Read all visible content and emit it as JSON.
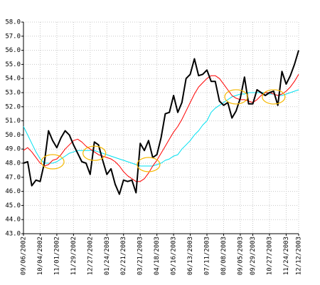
{
  "chart_data": {
    "type": "line",
    "categories": [
      "09/06/2002",
      null,
      null,
      null,
      "10/04/2002",
      null,
      null,
      null,
      "11/01/2002",
      null,
      null,
      null,
      "11/29/2002",
      null,
      null,
      null,
      "12/27/2002",
      null,
      null,
      null,
      "01/24/2003",
      null,
      null,
      null,
      "02/21/2003",
      null,
      null,
      null,
      "03/21/2003",
      null,
      null,
      null,
      "04/18/2003",
      null,
      null,
      null,
      "05/16/2003",
      null,
      null,
      null,
      "06/13/2003",
      null,
      null,
      null,
      "07/11/2003",
      null,
      null,
      null,
      "08/08/2003",
      null,
      null,
      null,
      "09/05/2003",
      null,
      null,
      "09/29/2003",
      null,
      null,
      null,
      "10/27/2003",
      null,
      null,
      null,
      "11/24/2003",
      null,
      null,
      "12/12/2003"
    ],
    "series": [
      {
        "color": "#000000",
        "values": [
          48.0,
          48.1,
          46.4,
          46.8,
          46.7,
          48.0,
          50.3,
          49.6,
          49.1,
          49.8,
          50.3,
          50.0,
          49.3,
          48.7,
          48.1,
          48.0,
          47.2,
          49.5,
          49.3,
          48.2,
          47.2,
          47.6,
          46.5,
          45.8,
          46.8,
          46.7,
          46.8,
          45.9,
          49.4,
          48.9,
          49.6,
          48.4,
          48.6,
          49.8,
          51.5,
          51.6,
          52.8,
          51.6,
          52.3,
          54.0,
          54.3,
          55.4,
          54.2,
          54.3,
          54.6,
          53.8,
          53.8,
          52.4,
          52.1,
          52.3,
          51.2,
          51.7,
          52.6,
          54.1,
          52.2,
          52.2,
          53.2,
          53.0,
          52.8,
          53.0,
          53.1,
          52.1,
          54.5,
          53.6,
          54.2,
          55.0,
          56.0
        ]
      },
      {
        "color": "#ff0000",
        "values": [
          48.9,
          49.1,
          48.8,
          48.4,
          48.0,
          47.8,
          47.9,
          48.2,
          48.3,
          48.6,
          49.0,
          49.3,
          49.6,
          49.7,
          49.5,
          49.2,
          49.0,
          48.8,
          48.6,
          48.5,
          48.4,
          48.3,
          48.1,
          47.8,
          47.4,
          47.1,
          46.9,
          46.7,
          46.7,
          46.9,
          47.3,
          47.8,
          48.2,
          48.7,
          49.2,
          49.7,
          50.2,
          50.6,
          51.1,
          51.7,
          52.3,
          52.9,
          53.4,
          53.7,
          54.0,
          54.2,
          54.2,
          54.0,
          53.6,
          53.2,
          52.8,
          52.6,
          52.5,
          52.5,
          52.4,
          52.3,
          52.5,
          52.8,
          53.0,
          53.0,
          52.9,
          52.8,
          52.9,
          53.1,
          53.4,
          53.8,
          54.3
        ]
      },
      {
        "color": "#00e0f0",
        "values": [
          50.6,
          50.0,
          49.4,
          48.8,
          48.3,
          48.0,
          48.0,
          48.0,
          48.1,
          48.3,
          48.5,
          48.7,
          48.8,
          48.9,
          48.9,
          48.9,
          48.9,
          48.9,
          48.8,
          48.7,
          48.6,
          48.5,
          48.4,
          48.3,
          48.2,
          48.1,
          48.0,
          47.9,
          47.8,
          47.8,
          47.8,
          47.8,
          47.9,
          48.0,
          48.2,
          48.3,
          48.5,
          48.6,
          49.0,
          49.3,
          49.6,
          50.0,
          50.3,
          50.7,
          51.0,
          51.6,
          51.9,
          52.1,
          52.3,
          52.5,
          52.7,
          52.8,
          52.9,
          52.9,
          53.0,
          53.0,
          53.0,
          53.0,
          53.0,
          52.9,
          52.9,
          52.8,
          52.8,
          52.9,
          53.0,
          53.1,
          53.2
        ]
      }
    ],
    "highlights": [
      {
        "index": 7,
        "value": 48.1
      },
      {
        "index": 17,
        "value": 48.7
      },
      {
        "index": 30,
        "value": 47.9
      },
      {
        "index": 51,
        "value": 52.7
      },
      {
        "index": 60,
        "value": 52.7
      }
    ],
    "highlight_color": "#f5b800",
    "ylim": [
      43,
      58
    ],
    "yticks": [
      {
        "value": 43,
        "label": "43.0"
      },
      {
        "value": 44,
        "label": "44.0"
      },
      {
        "value": 45,
        "label": "45.0"
      },
      {
        "value": 46,
        "label": "46.0"
      },
      {
        "value": 47,
        "label": "47.0"
      },
      {
        "value": 48,
        "label": "48.0"
      },
      {
        "value": 49,
        "label": "49.0"
      },
      {
        "value": 50,
        "label": "50.0"
      },
      {
        "value": 51,
        "label": "51.0"
      },
      {
        "value": 52,
        "label": "52.0"
      },
      {
        "value": 53,
        "label": "53.0"
      },
      {
        "value": 54,
        "label": "54.0"
      },
      {
        "value": 55,
        "label": "55.0"
      },
      {
        "value": 56,
        "label": "56.0"
      },
      {
        "value": 57,
        "label": "57.0"
      },
      {
        "value": 58,
        "label": "58.0"
      }
    ],
    "grid": true
  }
}
